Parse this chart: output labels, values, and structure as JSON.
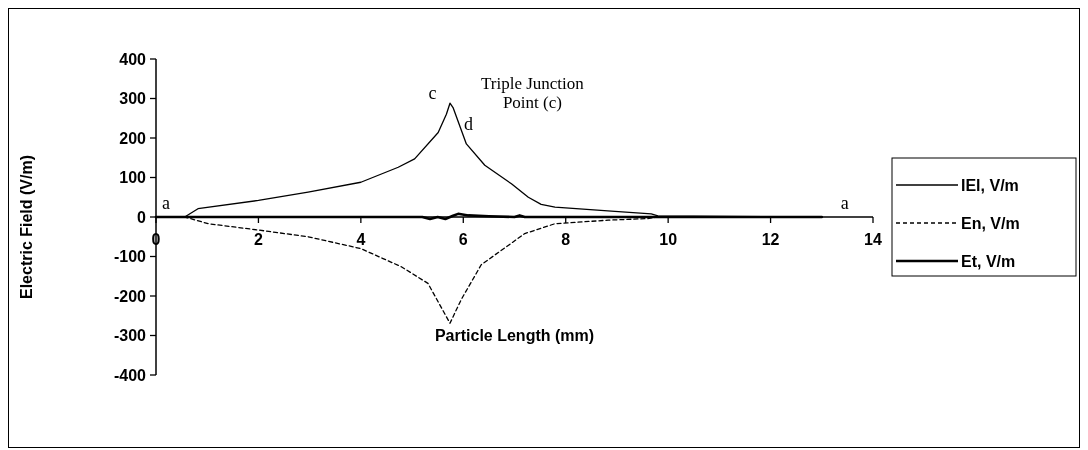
{
  "chart_data": {
    "type": "line",
    "xlabel": "Particle Length (mm)",
    "ylabel": "Electric Field (V/m)",
    "xlim": [
      0,
      14
    ],
    "xticks": [
      0,
      2,
      4,
      6,
      8,
      10,
      12,
      14
    ],
    "ylim": [
      -400,
      400
    ],
    "yticks": [
      -400,
      -300,
      -200,
      -100,
      0,
      100,
      200,
      300,
      400
    ],
    "grid": false,
    "legend": "right",
    "marker": "none",
    "annotations": [
      "a",
      "a",
      "c",
      "d",
      "Triple Junction Point (c)"
    ],
    "series": [
      {
        "name": "IEl, V/m",
        "color": "#000000",
        "line_style": "solid",
        "x": [
          0,
          0.56,
          0.82,
          2.0,
          2.97,
          4.0,
          4.73,
          5.05,
          5.51,
          5.67,
          5.74,
          5.8,
          6.06,
          6.42,
          6.94,
          7.27,
          7.52,
          7.79,
          8.96,
          9.67,
          9.8,
          13
        ],
        "values": [
          0,
          0,
          21,
          42,
          63,
          88,
          126,
          147,
          214,
          260,
          288,
          277,
          185,
          131,
          84,
          50,
          32,
          25,
          14,
          8,
          3,
          0
        ]
      },
      {
        "name": "En, V/m",
        "color": "#000000",
        "line_style": "dashed",
        "x": [
          0,
          0.56,
          1.02,
          2.0,
          2.97,
          4.0,
          4.79,
          5.31,
          5.74,
          5.96,
          6.35,
          7.2,
          7.79,
          8.83,
          9.6,
          9.8
        ],
        "values": [
          0,
          0,
          -17,
          -33,
          -50,
          -80,
          -126,
          -168,
          -269,
          -209,
          -121,
          -42,
          -17,
          -8,
          -4,
          0
        ]
      },
      {
        "name": "Et, V/m",
        "color": "#000000",
        "line_style": "solid",
        "x": [
          0,
          5.2,
          5.35,
          5.5,
          5.65,
          5.8,
          5.9,
          6.1,
          6.5,
          7.0,
          7.1,
          7.2,
          13
        ],
        "values": [
          0,
          0,
          -5,
          0,
          -5,
          3,
          8,
          4,
          2,
          0,
          4,
          0,
          0
        ]
      }
    ]
  }
}
